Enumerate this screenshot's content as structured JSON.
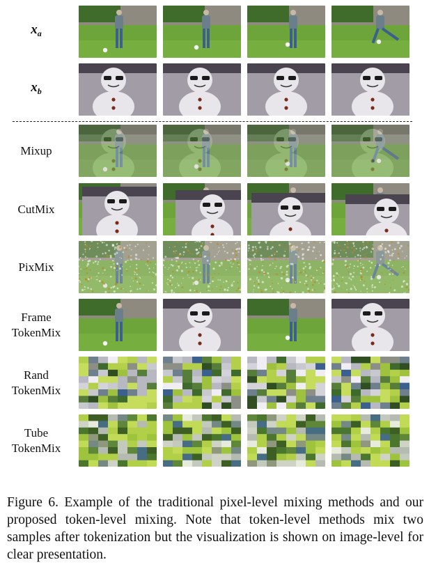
{
  "figure": {
    "rows": [
      {
        "id": "xa",
        "label_main": "x",
        "label_sub": "a",
        "math": true,
        "type": "soccer"
      },
      {
        "id": "xb",
        "label_main": "x",
        "label_sub": "b",
        "math": true,
        "type": "snowman"
      },
      {
        "id": "mixup",
        "label_lines": [
          "Mixup"
        ],
        "type": "mixup"
      },
      {
        "id": "cutmix",
        "label_lines": [
          "CutMix"
        ],
        "type": "cutmix"
      },
      {
        "id": "pixmix",
        "label_lines": [
          "PixMix"
        ],
        "type": "pixmix"
      },
      {
        "id": "frame-tokenmix",
        "label_lines": [
          "Frame",
          "TokenMix"
        ],
        "type": "frame"
      },
      {
        "id": "rand-tokenmix",
        "label_lines": [
          "Rand",
          "TokenMix"
        ],
        "type": "rand"
      },
      {
        "id": "tube-tokenmix",
        "label_lines": [
          "Tube",
          "TokenMix"
        ],
        "type": "tube"
      }
    ],
    "frames_per_row": 4,
    "frame_tokenmix_sources": [
      "a",
      "b",
      "a",
      "b"
    ],
    "colors": {
      "grass": "#6da53a",
      "hedge": "#3f6b2b",
      "wall": "#8f8a80",
      "shirt": "#6b7f8a",
      "jeans": "#3b5f8f",
      "snow": "#e8e6ea",
      "dark_bg": "#4a4450",
      "sunglasses": "#1a1a1a",
      "button": "#7a2a1a"
    }
  },
  "caption": {
    "text": "Figure 6.  Example of the traditional pixel-level mixing methods and our proposed token-level mixing. Note that token-level methods mix two samples after tokenization but the visualization is shown on image-level for clear presentation."
  }
}
